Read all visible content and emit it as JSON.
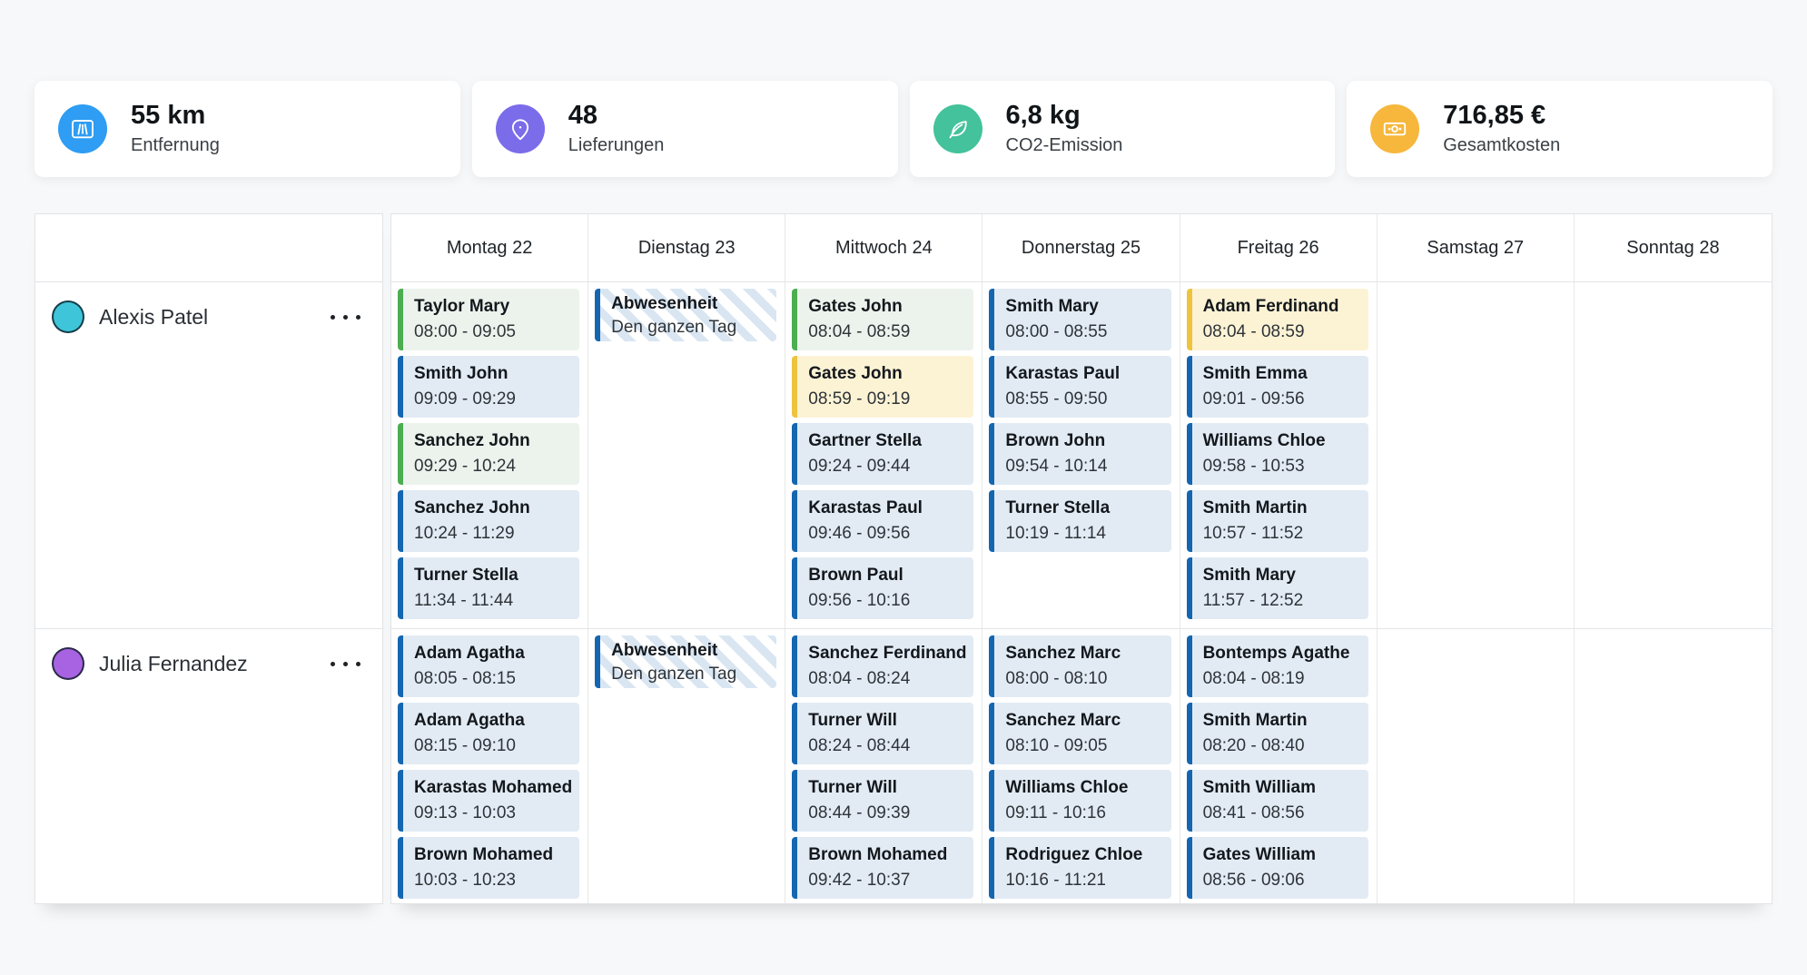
{
  "stats": {
    "items": [
      {
        "icon": "road-icon",
        "value": "55 km",
        "label": "Entfernung"
      },
      {
        "icon": "map-pin-icon",
        "value": "48",
        "label": "Lieferungen"
      },
      {
        "icon": "leaf-icon",
        "value": "6,8 kg",
        "label": "CO2-Emission"
      },
      {
        "icon": "banknote-icon",
        "value": "716,85 €",
        "label": "Gesamtkosten"
      }
    ]
  },
  "colors": {
    "stat_distance": "#2e9df3",
    "stat_deliveries": "#7b6cea",
    "stat_co2": "#43c29b",
    "stat_cost": "#f6b73c",
    "event_blue_border": "#1566b0",
    "event_blue_bg": "#e2ebf4",
    "event_green_border": "#4cae51",
    "event_green_bg": "#ebf3ec",
    "event_yellow_border": "#eec33e",
    "event_yellow_bg": "#fcf3d5",
    "absence_border": "#1566b0",
    "absence_stripe": "#d9e6f2"
  },
  "planner": {
    "days": [
      "Montag 22",
      "Dienstag 23",
      "Mittwoch 24",
      "Donnerstag 25",
      "Freitag 26",
      "Samstag 27",
      "Sonntag 28"
    ],
    "rows": [
      {
        "name": "Alexis Patel",
        "avatar_color": "#3fc5d9",
        "cells": [
          [
            {
              "title": "Taylor Mary",
              "time": "08:00 - 09:05",
              "type": "green"
            },
            {
              "title": "Smith John",
              "time": "09:09 - 09:29",
              "type": "blue"
            },
            {
              "title": "Sanchez John",
              "time": "09:29 - 10:24",
              "type": "green"
            },
            {
              "title": "Sanchez John",
              "time": "10:24 - 11:29",
              "type": "blue"
            },
            {
              "title": "Turner Stella",
              "time": "11:34 - 11:44",
              "type": "blue"
            }
          ],
          [
            {
              "title": "Abwesenheit",
              "time": "Den ganzen Tag",
              "type": "absence"
            }
          ],
          [
            {
              "title": "Gates John",
              "time": "08:04 - 08:59",
              "type": "green"
            },
            {
              "title": "Gates John",
              "time": "08:59 - 09:19",
              "type": "yellow"
            },
            {
              "title": "Gartner Stella",
              "time": "09:24 - 09:44",
              "type": "blue"
            },
            {
              "title": "Karastas Paul",
              "time": "09:46 - 09:56",
              "type": "blue"
            },
            {
              "title": "Brown Paul",
              "time": "09:56 - 10:16",
              "type": "blue"
            }
          ],
          [
            {
              "title": "Smith Mary",
              "time": "08:00 - 08:55",
              "type": "blue"
            },
            {
              "title": "Karastas Paul",
              "time": "08:55 - 09:50",
              "type": "blue"
            },
            {
              "title": "Brown John",
              "time": "09:54 - 10:14",
              "type": "blue"
            },
            {
              "title": "Turner Stella",
              "time": "10:19 - 11:14",
              "type": "blue"
            }
          ],
          [
            {
              "title": "Adam Ferdinand",
              "time": "08:04 - 08:59",
              "type": "yellow"
            },
            {
              "title": "Smith Emma",
              "time": "09:01 - 09:56",
              "type": "blue"
            },
            {
              "title": "Williams Chloe",
              "time": "09:58 - 10:53",
              "type": "blue"
            },
            {
              "title": "Smith Martin",
              "time": "10:57 - 11:52",
              "type": "blue"
            },
            {
              "title": "Smith Mary",
              "time": "11:57 - 12:52",
              "type": "blue"
            }
          ],
          [],
          []
        ]
      },
      {
        "name": "Julia Fernandez",
        "avatar_color": "#a863e3",
        "cells": [
          [
            {
              "title": "Adam Agatha",
              "time": "08:05 - 08:15",
              "type": "blue"
            },
            {
              "title": "Adam Agatha",
              "time": "08:15 - 09:10",
              "type": "blue"
            },
            {
              "title": "Karastas Mohamed",
              "time": "09:13 - 10:03",
              "type": "blue"
            },
            {
              "title": "Brown Mohamed",
              "time": "10:03 - 10:23",
              "type": "blue"
            }
          ],
          [
            {
              "title": "Abwesenheit",
              "time": "Den ganzen Tag",
              "type": "absence"
            }
          ],
          [
            {
              "title": "Sanchez Ferdinand",
              "time": "08:04 - 08:24",
              "type": "blue"
            },
            {
              "title": "Turner Will",
              "time": "08:24 - 08:44",
              "type": "blue"
            },
            {
              "title": "Turner Will",
              "time": "08:44 - 09:39",
              "type": "blue"
            },
            {
              "title": "Brown Mohamed",
              "time": "09:42 - 10:37",
              "type": "blue"
            }
          ],
          [
            {
              "title": "Sanchez Marc",
              "time": "08:00 - 08:10",
              "type": "blue"
            },
            {
              "title": "Sanchez Marc",
              "time": "08:10 - 09:05",
              "type": "blue"
            },
            {
              "title": "Williams Chloe",
              "time": "09:11 - 10:16",
              "type": "blue"
            },
            {
              "title": "Rodriguez Chloe",
              "time": "10:16 - 11:21",
              "type": "blue"
            }
          ],
          [
            {
              "title": "Bontemps Agathe",
              "time": "08:04 - 08:19",
              "type": "blue"
            },
            {
              "title": "Smith Martin",
              "time": "08:20 - 08:40",
              "type": "blue"
            },
            {
              "title": "Smith William",
              "time": "08:41 - 08:56",
              "type": "blue"
            },
            {
              "title": "Gates William",
              "time": "08:56 - 09:06",
              "type": "blue"
            }
          ],
          [],
          []
        ]
      }
    ]
  }
}
